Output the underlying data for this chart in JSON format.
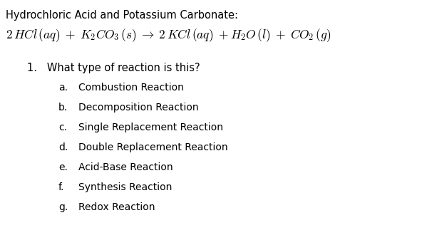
{
  "background_color": "#ffffff",
  "title_line": "Hydrochloric Acid and Potassium Carbonate:",
  "question": "1.   What type of reaction is this?",
  "options": [
    [
      "a.",
      "Combustion Reaction"
    ],
    [
      "b.",
      "Decomposition Reaction"
    ],
    [
      "c.",
      "Single Replacement Reaction"
    ],
    [
      "d.",
      "Double Replacement Reaction"
    ],
    [
      "e.",
      "Acid-Base Reaction"
    ],
    [
      "f.",
      "Synthesis Reaction"
    ],
    [
      "g.",
      "Redox Reaction"
    ]
  ],
  "title_fontsize": 10.5,
  "eq_fontsize": 12.5,
  "question_fontsize": 10.5,
  "option_fontsize": 10.0
}
